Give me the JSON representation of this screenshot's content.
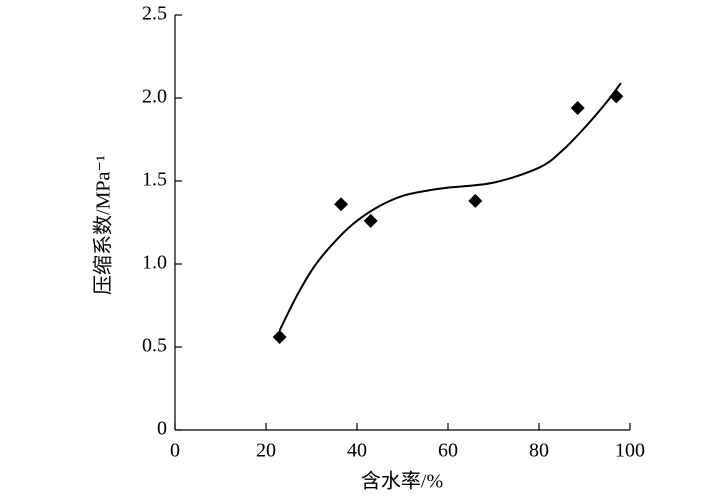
{
  "chart_data": {
    "type": "scatter",
    "xlabel": "含水率/%",
    "ylabel": "压缩系数/MPa⁻¹",
    "series": [
      {
        "color": "#000000",
        "marker": "diamond",
        "x": [
          23,
          36.5,
          43,
          66,
          88.5,
          97
        ],
        "values": [
          0.56,
          1.36,
          1.26,
          1.38,
          1.94,
          2.01
        ]
      },
      {
        "color": "#000000",
        "marker": "line",
        "x": [
          23,
          27,
          31,
          36,
          40,
          45,
          50,
          55,
          60,
          70,
          80,
          85,
          90,
          95,
          98
        ],
        "values": [
          0.6,
          0.82,
          1.0,
          1.16,
          1.26,
          1.35,
          1.41,
          1.44,
          1.46,
          1.49,
          1.58,
          1.68,
          1.82,
          1.98,
          2.09
        ]
      }
    ],
    "xlim": [
      0,
      100
    ],
    "xticks": [
      0,
      20,
      40,
      60,
      80,
      100
    ],
    "ylim": [
      0,
      2.5
    ],
    "yticks": [
      0,
      0.5,
      {
        "value": 1,
        "label": "1.0"
      },
      1.5,
      {
        "value": 2,
        "label": "2.0"
      },
      2.5
    ]
  }
}
